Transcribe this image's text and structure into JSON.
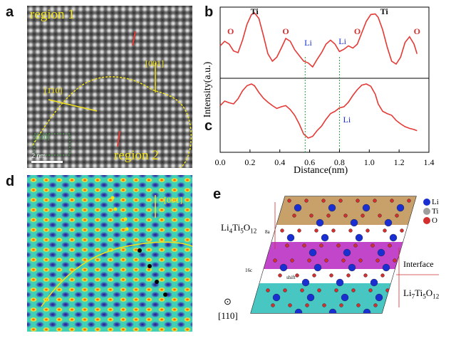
{
  "panel_labels": {
    "a": "a",
    "b": "b",
    "c": "c",
    "d": "d",
    "e": "e"
  },
  "panel_a": {
    "region1": "region 1",
    "region2": "region 2",
    "dir_001": "[001]",
    "dir_110": "[110]",
    "dir_1bar10": "[1̄10]",
    "scale_bar": "2 nm"
  },
  "panel_b": {
    "peak_labels": [
      "O",
      "Ti",
      "O",
      "Li",
      "Li",
      "O",
      "Ti",
      "O"
    ]
  },
  "panel_c": {
    "peak_label": "Li"
  },
  "plot_axes": {
    "ylabel": "Intensity(a.u.)",
    "xlabel": "Distance(nm)",
    "xticks": [
      "0.0",
      "0.2",
      "0.4",
      "0.6",
      "0.8",
      "1.0",
      "1.2",
      "1.4"
    ]
  },
  "panel_d": {
    "dir_001": "[001]"
  },
  "panel_e": {
    "legend": [
      "Li",
      "Ti",
      "O"
    ],
    "top_phase": "Li4Ti5O12",
    "interface": "Interface",
    "bottom_phase": "Li7Ti5O12",
    "site_8a": "8a",
    "site_16c": "16c",
    "shift": "shift",
    "zone_axis": "[110]"
  },
  "chart_data": [
    {
      "type": "line",
      "panel": "b",
      "xlim": [
        0.0,
        1.4
      ],
      "x": [
        0.0,
        0.03,
        0.06,
        0.09,
        0.12,
        0.15,
        0.18,
        0.21,
        0.23,
        0.26,
        0.29,
        0.32,
        0.35,
        0.38,
        0.41,
        0.44,
        0.47,
        0.5,
        0.53,
        0.56,
        0.59,
        0.62,
        0.65,
        0.68,
        0.71,
        0.74,
        0.77,
        0.8,
        0.83,
        0.86,
        0.89,
        0.92,
        0.95,
        0.98,
        1.01,
        1.04,
        1.06,
        1.09,
        1.12,
        1.15,
        1.18,
        1.21,
        1.24,
        1.27,
        1.3,
        1.32
      ],
      "y": [
        0.42,
        0.5,
        0.45,
        0.33,
        0.3,
        0.52,
        0.8,
        0.97,
        1.0,
        0.9,
        0.6,
        0.28,
        0.15,
        0.22,
        0.38,
        0.55,
        0.5,
        0.35,
        0.25,
        0.15,
        0.12,
        0.05,
        0.18,
        0.3,
        0.45,
        0.52,
        0.45,
        0.32,
        0.36,
        0.42,
        0.38,
        0.45,
        0.65,
        0.85,
        0.97,
        0.98,
        0.92,
        0.7,
        0.4,
        0.15,
        0.1,
        0.22,
        0.48,
        0.58,
        0.45,
        0.28
      ],
      "color": "#e53935"
    },
    {
      "type": "line",
      "panel": "c",
      "xlim": [
        0.0,
        1.4
      ],
      "x": [
        0.0,
        0.03,
        0.06,
        0.09,
        0.12,
        0.15,
        0.18,
        0.21,
        0.23,
        0.26,
        0.29,
        0.32,
        0.35,
        0.38,
        0.41,
        0.44,
        0.47,
        0.5,
        0.53,
        0.56,
        0.59,
        0.62,
        0.65,
        0.68,
        0.71,
        0.74,
        0.77,
        0.8,
        0.83,
        0.86,
        0.89,
        0.92,
        0.95,
        0.98,
        1.01,
        1.04,
        1.06,
        1.09,
        1.12,
        1.15,
        1.18,
        1.21,
        1.24,
        1.27,
        1.3,
        1.32
      ],
      "y": [
        0.62,
        0.7,
        0.67,
        0.65,
        0.74,
        0.88,
        0.97,
        1.0,
        0.97,
        0.85,
        0.75,
        0.68,
        0.62,
        0.57,
        0.6,
        0.62,
        0.55,
        0.45,
        0.3,
        0.12,
        0.05,
        0.08,
        0.18,
        0.26,
        0.38,
        0.48,
        0.52,
        0.58,
        0.6,
        0.68,
        0.8,
        0.9,
        0.98,
        1.0,
        0.96,
        0.82,
        0.65,
        0.52,
        0.48,
        0.45,
        0.36,
        0.3,
        0.25,
        0.22,
        0.2,
        0.18
      ],
      "color": "#e53935"
    }
  ],
  "colors": {
    "curve": "#e53935",
    "guide": "#2e9e3a",
    "accent_yellow": "#f2e21a",
    "label_red": "#d32f2f",
    "label_blue": "#1a2fd1"
  }
}
